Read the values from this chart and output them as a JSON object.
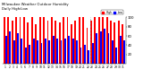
{
  "title": "Milwaukee Weather Outdoor Humidity",
  "subtitle": "Daily High/Low",
  "high_color": "#ff0000",
  "low_color": "#0000ff",
  "background_color": "#ffffff",
  "ylim": [
    0,
    100
  ],
  "days": [
    1,
    2,
    3,
    4,
    5,
    6,
    7,
    8,
    9,
    10,
    11,
    12,
    13,
    14,
    15,
    16,
    17,
    18,
    19,
    20,
    21,
    22,
    23,
    24,
    25,
    26,
    27,
    28,
    29,
    30,
    31
  ],
  "highs": [
    100,
    100,
    93,
    100,
    100,
    100,
    88,
    100,
    84,
    100,
    100,
    93,
    100,
    93,
    88,
    100,
    100,
    84,
    93,
    100,
    100,
    78,
    93,
    100,
    100,
    100,
    100,
    93,
    88,
    93,
    84
  ],
  "lows": [
    60,
    70,
    50,
    65,
    55,
    35,
    40,
    55,
    50,
    45,
    55,
    50,
    60,
    55,
    50,
    55,
    60,
    55,
    50,
    35,
    40,
    30,
    45,
    65,
    70,
    75,
    65,
    50,
    35,
    60,
    50
  ],
  "vline_pos": 21.5,
  "yticks": [
    20,
    40,
    60,
    80,
    100
  ],
  "legend_labels": [
    "High",
    "Low"
  ]
}
